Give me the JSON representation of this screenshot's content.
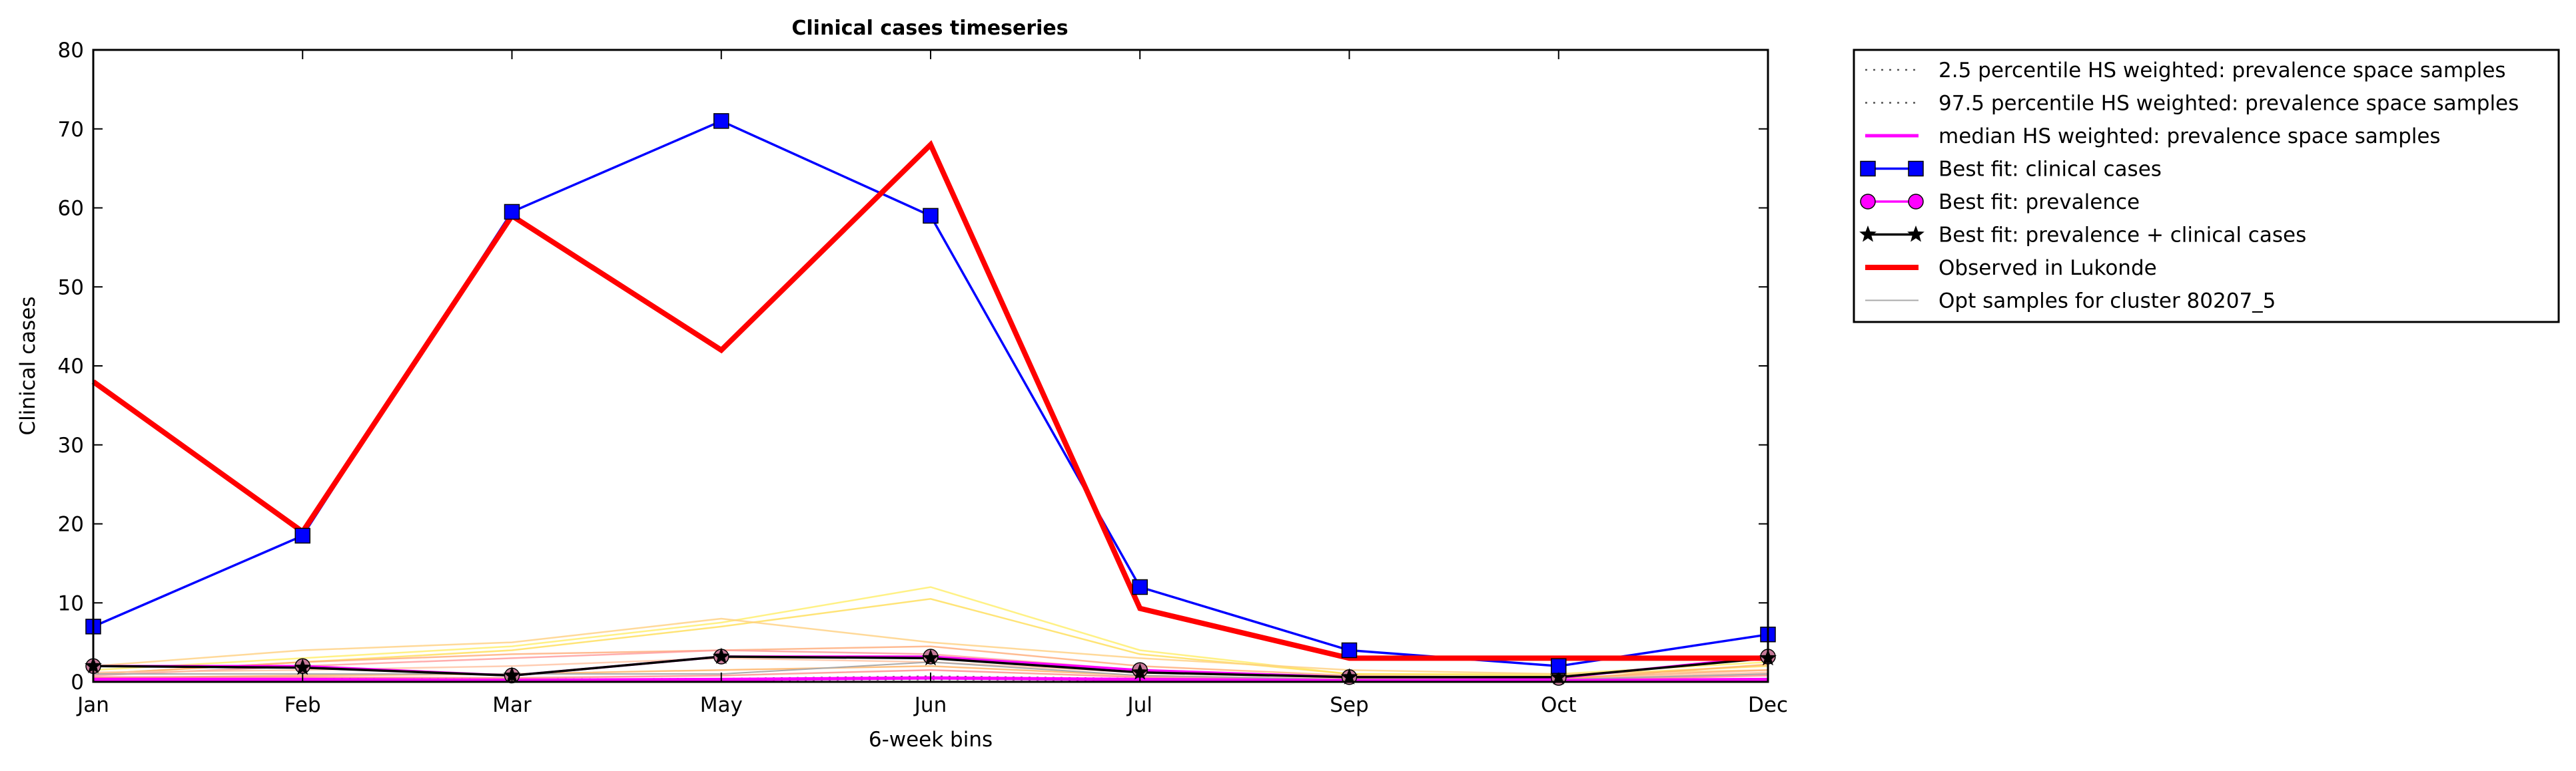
{
  "chart_data": {
    "type": "line",
    "title": "Clinical cases timeseries",
    "xlabel": "6-week bins",
    "ylabel": "Clinical cases",
    "categories": [
      "Jan",
      "Feb",
      "Mar",
      "May",
      "Jun",
      "Jul",
      "Sep",
      "Oct",
      "Dec"
    ],
    "ylim": [
      0,
      80
    ],
    "yticks": [
      0,
      10,
      20,
      30,
      40,
      50,
      60,
      70,
      80
    ],
    "grid": false,
    "legend_position": "outside-right-top",
    "series": [
      {
        "name": "2.5 percentile HS weighted: prevalence space samples",
        "style": "dotted",
        "color": "#555555",
        "values": [
          0.2,
          0.2,
          0.1,
          0.2,
          0.3,
          0.2,
          0.1,
          0.1,
          0.2
        ]
      },
      {
        "name": "97.5 percentile HS weighted: prevalence space samples",
        "style": "dotted",
        "color": "#555555",
        "values": [
          0.4,
          0.4,
          0.3,
          0.4,
          0.7,
          0.4,
          0.2,
          0.2,
          0.4
        ]
      },
      {
        "name": "median HS weighted: prevalence space samples",
        "style": "solid",
        "color": "#ff00ff",
        "values": [
          0.3,
          0.3,
          0.2,
          0.3,
          0.5,
          0.3,
          0.15,
          0.15,
          0.3
        ]
      },
      {
        "name": "Best fit: clinical cases",
        "style": "marker-square",
        "color": "#0000ff",
        "values": [
          7,
          18.5,
          59.5,
          71,
          59,
          12,
          4,
          2,
          6
        ]
      },
      {
        "name": "Best fit: prevalence",
        "style": "marker-circle",
        "color": "#ff00ff",
        "values": [
          2,
          2,
          0.8,
          3.2,
          3.2,
          1.5,
          0.6,
          0.5,
          3.2
        ]
      },
      {
        "name": "Best fit: prevalence + clinical cases",
        "style": "marker-star",
        "color": "#000000",
        "values": [
          2,
          1.8,
          0.8,
          3.2,
          3,
          1.2,
          0.6,
          0.6,
          3
        ]
      },
      {
        "name": "Observed in Lukonde",
        "style": "thick",
        "color": "#ff0000",
        "values": [
          38,
          19,
          59,
          42,
          68,
          9.3,
          3,
          3,
          3
        ]
      },
      {
        "name": "Opt samples for cluster 80207_5",
        "style": "thin",
        "color": "#aaaaaa",
        "values": [
          1,
          1,
          1,
          1,
          2.5,
          0.8,
          0.3,
          0.3,
          1
        ]
      }
    ],
    "sample_lines": [
      {
        "color": "#ffee66",
        "values": [
          1.5,
          3,
          4.5,
          7.5,
          12,
          4,
          1,
          1,
          2.5
        ]
      },
      {
        "color": "#ffdd55",
        "values": [
          1,
          2.5,
          4,
          7,
          10.5,
          3.5,
          1,
          0.8,
          2
        ]
      },
      {
        "color": "#ffd080",
        "values": [
          2,
          4,
          5,
          8,
          5,
          3,
          1.5,
          1,
          1.5
        ]
      },
      {
        "color": "#ffaa77",
        "values": [
          1,
          2.5,
          3.5,
          4,
          4.5,
          2,
          0.8,
          0.5,
          1.5
        ]
      },
      {
        "color": "#ff9999",
        "values": [
          0.8,
          2,
          3,
          4,
          3.5,
          1.5,
          0.5,
          0.4,
          1
        ]
      },
      {
        "color": "#ffc0a0",
        "values": [
          1.2,
          1.5,
          2,
          3,
          2.5,
          1.2,
          0.5,
          0.4,
          1.2
        ]
      },
      {
        "color": "#ffb060",
        "values": [
          0.5,
          0.8,
          1,
          1.5,
          2,
          0.8,
          0.3,
          0.3,
          2.2
        ]
      },
      {
        "color": "#ff8888",
        "values": [
          0.6,
          0.6,
          0.5,
          0.8,
          1.5,
          0.6,
          0.2,
          0.2,
          0.8
        ]
      }
    ]
  }
}
